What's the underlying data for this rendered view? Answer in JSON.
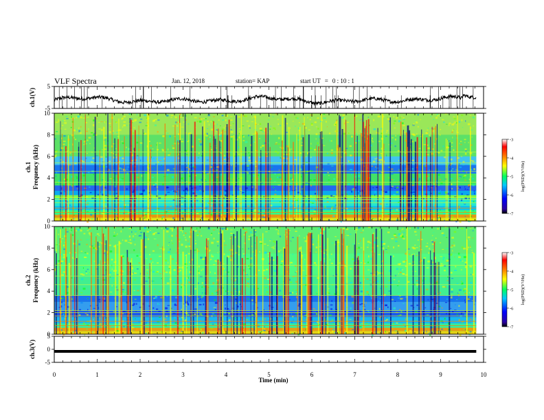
{
  "header": {
    "title": "VLF Spectra",
    "date": "Jan. 12, 2018",
    "station": "station= KAP",
    "start_ut_label": "start UT",
    "start_ut_value": "0 : 10 : 1"
  },
  "chart_data": [
    {
      "type": "line",
      "panel": "ch1-waveform",
      "ylabel": "ch.1(V)",
      "ylim": [
        -5,
        5
      ],
      "yticks": [
        "5",
        "-5"
      ],
      "xlim": [
        0,
        10
      ],
      "x_end": 9.83,
      "series_color": "#000000"
    },
    {
      "type": "heatmap",
      "panel": "ch1-spectrogram",
      "ylabel": "ch.1",
      "ylabel2": "Frequency (kHz)",
      "ylim": [
        0,
        10
      ],
      "yticks": [
        "0",
        "2",
        "4",
        "6",
        "8",
        "10"
      ],
      "xlim": [
        0,
        10
      ],
      "x_end": 9.83,
      "colorbar": {
        "label": "log(PSD)(V²/Hz)",
        "range": [
          -7,
          -3
        ],
        "ticks": [
          "-3",
          "-4",
          "-5",
          "-6",
          "-7"
        ]
      }
    },
    {
      "type": "heatmap",
      "panel": "ch2-spectrogram",
      "ylabel": "ch.2",
      "ylabel2": "Frequency (kHz)",
      "ylim": [
        0,
        10
      ],
      "yticks": [
        "0",
        "2",
        "4",
        "6",
        "8",
        "10"
      ],
      "xlim": [
        0,
        10
      ],
      "x_end": 9.83,
      "colorbar": {
        "label": "log(PSD)(V²/Hz)",
        "range": [
          -7,
          -3
        ],
        "ticks": [
          "-3",
          "-4",
          "-5",
          "-6",
          "-7"
        ]
      }
    },
    {
      "type": "line",
      "panel": "ch3-waveform",
      "ylabel": "ch.3(V)",
      "ylim": [
        -5,
        5
      ],
      "yticks": [
        "5",
        "0",
        "-5"
      ],
      "xlim": [
        0,
        10
      ],
      "x_end": 9.83,
      "constant_value": 0,
      "series_color": "#000000"
    }
  ],
  "xaxis": {
    "label": "Time (min)",
    "ticks": [
      "0",
      "1",
      "2",
      "3",
      "4",
      "5",
      "6",
      "7",
      "8",
      "9",
      "10"
    ]
  }
}
